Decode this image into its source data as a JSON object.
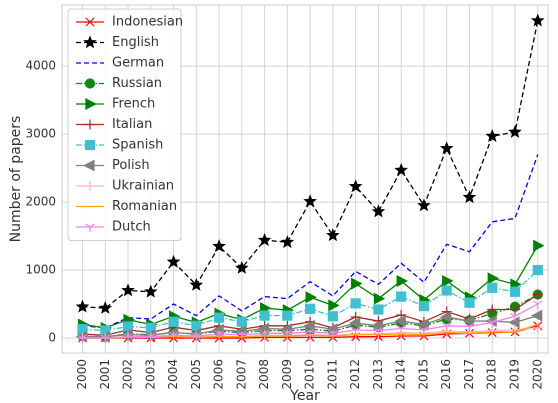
{
  "chart_data": {
    "type": "line",
    "xlabel": "Year",
    "ylabel": "Number of papers",
    "x": [
      2000,
      2001,
      2002,
      2003,
      2004,
      2005,
      2006,
      2007,
      2008,
      2009,
      2010,
      2011,
      2012,
      2013,
      2014,
      2015,
      2016,
      2017,
      2018,
      2019,
      2020
    ],
    "xlim": [
      1999.1,
      2020.45
    ],
    "xticks": [
      2000,
      2001,
      2002,
      2003,
      2004,
      2005,
      2006,
      2007,
      2008,
      2009,
      2010,
      2011,
      2012,
      2013,
      2014,
      2015,
      2016,
      2017,
      2018,
      2019,
      2020
    ],
    "ylim": [
      -220,
      4900
    ],
    "yticks": [
      0,
      1000,
      2000,
      3000,
      4000
    ],
    "grid": true,
    "legend": "upper left",
    "series": [
      {
        "name": "Indonesian",
        "color": "#ff0000",
        "dash": "solid",
        "marker": "x",
        "values": [
          0,
          0,
          0,
          0,
          0,
          0,
          0,
          0,
          10,
          10,
          10,
          10,
          20,
          20,
          30,
          30,
          60,
          70,
          80,
          90,
          180
        ]
      },
      {
        "name": "English",
        "color": "#000000",
        "dash": "dashed",
        "marker": "star",
        "values": [
          460,
          440,
          700,
          680,
          1120,
          780,
          1350,
          1030,
          1440,
          1410,
          2010,
          1510,
          2230,
          1860,
          2470,
          1950,
          2790,
          2070,
          2970,
          3030,
          4670
        ]
      },
      {
        "name": "German",
        "color": "#0000ee",
        "dash": "dashed",
        "marker": "none",
        "values": [
          180,
          150,
          300,
          280,
          500,
          330,
          620,
          400,
          610,
          580,
          830,
          620,
          980,
          790,
          1100,
          820,
          1380,
          1270,
          1710,
          1760,
          2700
        ]
      },
      {
        "name": "Russian",
        "color": "#118811",
        "dash": "dashdot",
        "marker": "circle",
        "values": [
          30,
          20,
          60,
          50,
          80,
          60,
          100,
          80,
          110,
          110,
          130,
          100,
          190,
          160,
          220,
          180,
          280,
          260,
          360,
          460,
          640
        ]
      },
      {
        "name": "French",
        "color": "#008000",
        "dash": "solid",
        "marker": "triangle-right",
        "values": [
          200,
          150,
          270,
          200,
          320,
          230,
          360,
          270,
          440,
          410,
          600,
          480,
          800,
          580,
          840,
          560,
          840,
          600,
          880,
          790,
          1360
        ]
      },
      {
        "name": "Italian",
        "color": "#a52a2a",
        "dash": "solid",
        "marker": "plus",
        "values": [
          60,
          40,
          120,
          80,
          160,
          110,
          180,
          130,
          180,
          180,
          240,
          150,
          310,
          250,
          340,
          240,
          390,
          280,
          420,
          420,
          640
        ]
      },
      {
        "name": "Spanish",
        "color": "#40bfd0",
        "dash": "dashdot",
        "marker": "square",
        "values": [
          130,
          110,
          170,
          150,
          240,
          180,
          300,
          240,
          330,
          330,
          430,
          320,
          510,
          420,
          610,
          470,
          700,
          520,
          740,
          680,
          1000
        ]
      },
      {
        "name": "Polish",
        "color": "#808080",
        "dash": "solid",
        "marker": "triangle-left",
        "values": [
          20,
          20,
          50,
          40,
          80,
          60,
          120,
          100,
          140,
          130,
          180,
          130,
          220,
          180,
          250,
          200,
          310,
          250,
          250,
          230,
          330
        ]
      },
      {
        "name": "Ukrainian",
        "color": "#ffb6c1",
        "dash": "solid",
        "marker": "plus",
        "values": [
          0,
          0,
          10,
          10,
          20,
          20,
          30,
          20,
          40,
          40,
          50,
          40,
          60,
          60,
          80,
          70,
          100,
          90,
          110,
          120,
          150
        ]
      },
      {
        "name": "Romanian",
        "color": "#ffa500",
        "dash": "solid",
        "marker": "none",
        "values": [
          0,
          0,
          10,
          10,
          20,
          10,
          20,
          20,
          30,
          30,
          40,
          30,
          50,
          50,
          60,
          50,
          80,
          70,
          90,
          90,
          200
        ]
      },
      {
        "name": "Dutch",
        "color": "#ee82ee",
        "dash": "solid",
        "marker": "tri-down",
        "values": [
          0,
          0,
          20,
          20,
          40,
          30,
          60,
          50,
          70,
          70,
          90,
          70,
          120,
          110,
          140,
          120,
          180,
          170,
          230,
          320,
          500
        ]
      }
    ]
  }
}
